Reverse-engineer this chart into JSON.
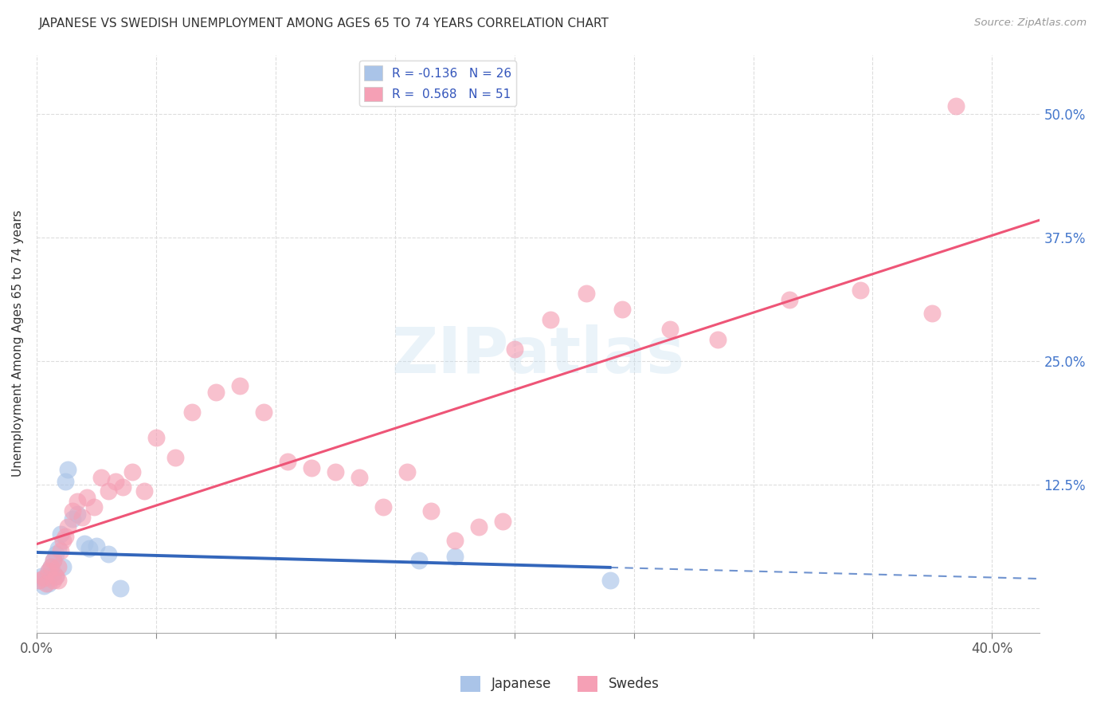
{
  "title": "JAPANESE VS SWEDISH UNEMPLOYMENT AMONG AGES 65 TO 74 YEARS CORRELATION CHART",
  "source": "Source: ZipAtlas.com",
  "ylabel": "Unemployment Among Ages 65 to 74 years",
  "xlim": [
    0.0,
    0.42
  ],
  "ylim": [
    -0.025,
    0.56
  ],
  "xtick_positions": [
    0.0,
    0.05,
    0.1,
    0.15,
    0.2,
    0.25,
    0.3,
    0.35,
    0.4
  ],
  "ytick_positions": [
    0.0,
    0.125,
    0.25,
    0.375,
    0.5
  ],
  "ytick_labels": [
    "",
    "12.5%",
    "25.0%",
    "37.5%",
    "50.0%"
  ],
  "xtick_labels": [
    "0.0%",
    "",
    "",
    "",
    "",
    "",
    "",
    "",
    "40.0%"
  ],
  "background_color": "#ffffff",
  "grid_color": "#dddddd",
  "japanese_color": "#aac4e8",
  "swedes_color": "#f5a0b5",
  "japanese_line_color": "#3366bb",
  "swedes_line_color": "#ee5577",
  "legend_japanese_label": "R = -0.136   N = 26",
  "legend_swedes_label": "R =  0.568   N = 51",
  "watermark": "ZIPatlas",
  "japanese_x": [
    0.001,
    0.002,
    0.003,
    0.004,
    0.005,
    0.005,
    0.006,
    0.007,
    0.007,
    0.008,
    0.008,
    0.009,
    0.01,
    0.011,
    0.012,
    0.013,
    0.015,
    0.017,
    0.02,
    0.022,
    0.025,
    0.03,
    0.035,
    0.16,
    0.175,
    0.24
  ],
  "japanese_y": [
    0.028,
    0.032,
    0.022,
    0.03,
    0.038,
    0.025,
    0.042,
    0.035,
    0.048,
    0.032,
    0.055,
    0.06,
    0.075,
    0.042,
    0.128,
    0.14,
    0.09,
    0.095,
    0.065,
    0.06,
    0.063,
    0.055,
    0.02,
    0.048,
    0.052,
    0.028
  ],
  "swedes_x": [
    0.001,
    0.003,
    0.004,
    0.005,
    0.006,
    0.007,
    0.007,
    0.008,
    0.009,
    0.009,
    0.01,
    0.011,
    0.012,
    0.013,
    0.015,
    0.017,
    0.019,
    0.021,
    0.024,
    0.027,
    0.03,
    0.033,
    0.036,
    0.04,
    0.045,
    0.05,
    0.058,
    0.065,
    0.075,
    0.085,
    0.095,
    0.105,
    0.115,
    0.125,
    0.135,
    0.145,
    0.155,
    0.165,
    0.175,
    0.185,
    0.195,
    0.2,
    0.215,
    0.23,
    0.245,
    0.265,
    0.285,
    0.315,
    0.345,
    0.375,
    0.385
  ],
  "swedes_y": [
    0.028,
    0.03,
    0.025,
    0.038,
    0.042,
    0.028,
    0.048,
    0.032,
    0.028,
    0.042,
    0.058,
    0.068,
    0.072,
    0.082,
    0.098,
    0.108,
    0.092,
    0.112,
    0.102,
    0.132,
    0.118,
    0.128,
    0.122,
    0.138,
    0.118,
    0.172,
    0.152,
    0.198,
    0.218,
    0.225,
    0.198,
    0.148,
    0.142,
    0.138,
    0.132,
    0.102,
    0.138,
    0.098,
    0.068,
    0.082,
    0.088,
    0.262,
    0.292,
    0.318,
    0.302,
    0.282,
    0.272,
    0.312,
    0.322,
    0.298,
    0.508
  ]
}
